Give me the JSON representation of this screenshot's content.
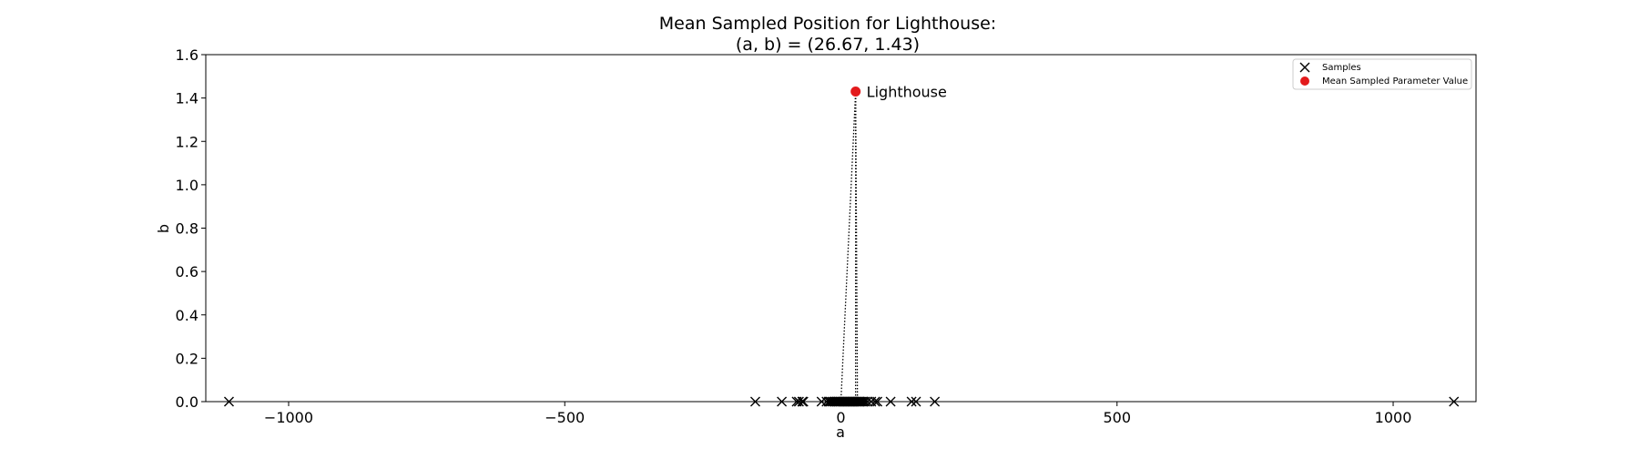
{
  "chart_data": {
    "type": "scatter",
    "title_line1": "Mean Sampled Position for Lighthouse:",
    "title_line2": "(a, b) = (26.67, 1.43)",
    "xlabel": "a",
    "ylabel": "b",
    "xlim": [
      -1150,
      1150
    ],
    "ylim": [
      0,
      1.6
    ],
    "xticks": [
      -1000,
      -500,
      0,
      500,
      1000
    ],
    "xtick_labels": [
      "−1000",
      "−500",
      "0",
      "500",
      "1000"
    ],
    "yticks": [
      0.0,
      0.2,
      0.4,
      0.6,
      0.8,
      1.0,
      1.2,
      1.4,
      1.6
    ],
    "ytick_labels": [
      "0.0",
      "0.2",
      "0.4",
      "0.6",
      "0.8",
      "1.0",
      "1.2",
      "1.4",
      "1.6"
    ],
    "grid": false,
    "legend_position": "top-right",
    "series": [
      {
        "name": "Samples",
        "marker": "x",
        "color": "#000000",
        "x": [
          -1108,
          -155,
          -107,
          -80,
          -76,
          -70,
          -68,
          -35,
          -26,
          -22,
          -19,
          -16,
          -13,
          -10,
          -8,
          -6,
          -4,
          -2,
          0,
          2,
          4,
          6,
          8,
          10,
          12,
          14,
          16,
          18,
          20,
          22,
          24,
          26,
          28,
          30,
          32,
          34,
          36,
          38,
          41,
          44,
          48,
          55,
          62,
          66,
          90,
          128,
          136,
          170,
          1110
        ],
        "y": [
          0,
          0,
          0,
          0,
          0,
          0,
          0,
          0,
          0,
          0,
          0,
          0,
          0,
          0,
          0,
          0,
          0,
          0,
          0,
          0,
          0,
          0,
          0,
          0,
          0,
          0,
          0,
          0,
          0,
          0,
          0,
          0,
          0,
          0,
          0,
          0,
          0,
          0,
          0,
          0,
          0,
          0,
          0,
          0,
          0,
          0,
          0,
          0,
          0
        ]
      },
      {
        "name": "Mean Sampled Parameter Value",
        "marker": "o",
        "color": "#e31a1c",
        "x": [
          26.67
        ],
        "y": [
          1.43
        ]
      }
    ],
    "annotation": {
      "text": "Lighthouse",
      "x": 26.67,
      "y": 1.43
    },
    "rays": [
      {
        "from": [
          26.67,
          1.43
        ],
        "to": [
          0,
          0
        ]
      },
      {
        "from": [
          26.67,
          1.43
        ],
        "to": [
          26.67,
          0
        ]
      },
      {
        "from": [
          26.67,
          1.43
        ],
        "to": [
          30,
          0
        ]
      }
    ]
  }
}
